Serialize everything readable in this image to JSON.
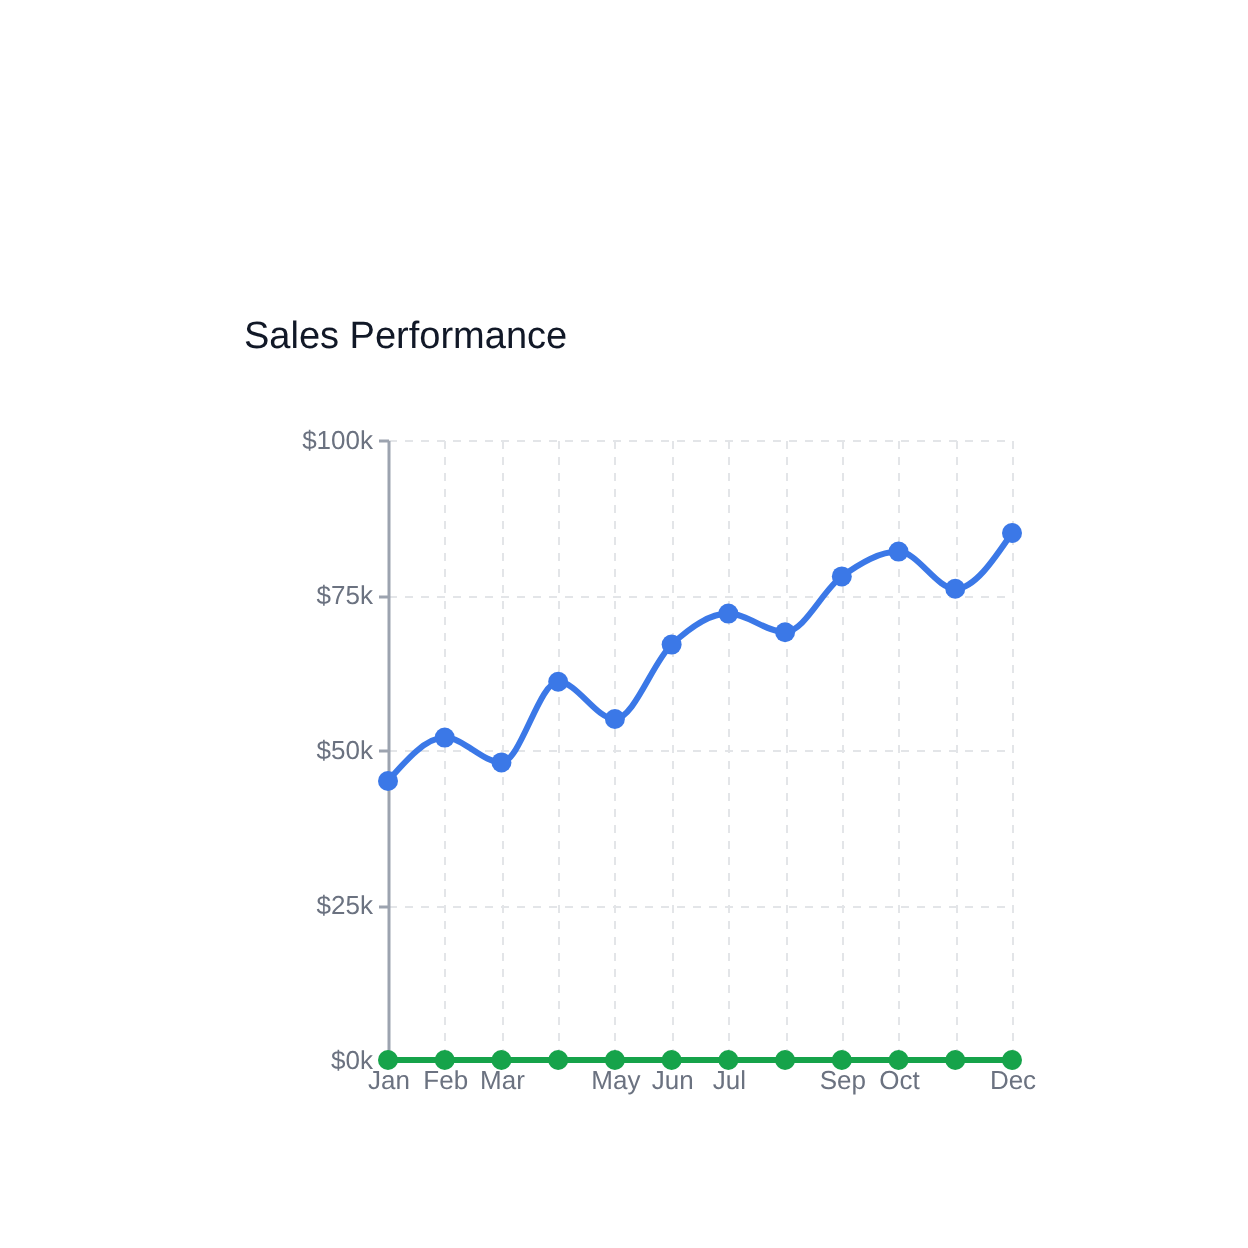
{
  "chart_data": {
    "type": "line",
    "title": "Sales Performance",
    "categories": [
      "Jan",
      "Feb",
      "Mar",
      null,
      "May",
      "Jun",
      "Jul",
      null,
      "Sep",
      "Oct",
      null,
      "Dec"
    ],
    "series": [
      {
        "color": "#3b78e7",
        "values": [
          45000,
          52000,
          48000,
          61000,
          55000,
          67000,
          72000,
          69000,
          78000,
          82000,
          76000,
          85000
        ]
      },
      {
        "color": "#16a34a",
        "values": [
          0,
          0,
          0,
          0,
          0,
          0,
          0,
          0,
          0,
          0,
          0,
          0
        ]
      }
    ],
    "ylim": [
      0,
      100000
    ],
    "yticks": [
      {
        "value": 0,
        "label": "$0k"
      },
      {
        "value": 25000,
        "label": "$25k"
      },
      {
        "value": 50000,
        "label": "$50k"
      },
      {
        "value": 75000,
        "label": "$75k"
      },
      {
        "value": 100000,
        "label": "$100k"
      }
    ],
    "grid": true,
    "marker": "circle",
    "line_style": "solid"
  }
}
